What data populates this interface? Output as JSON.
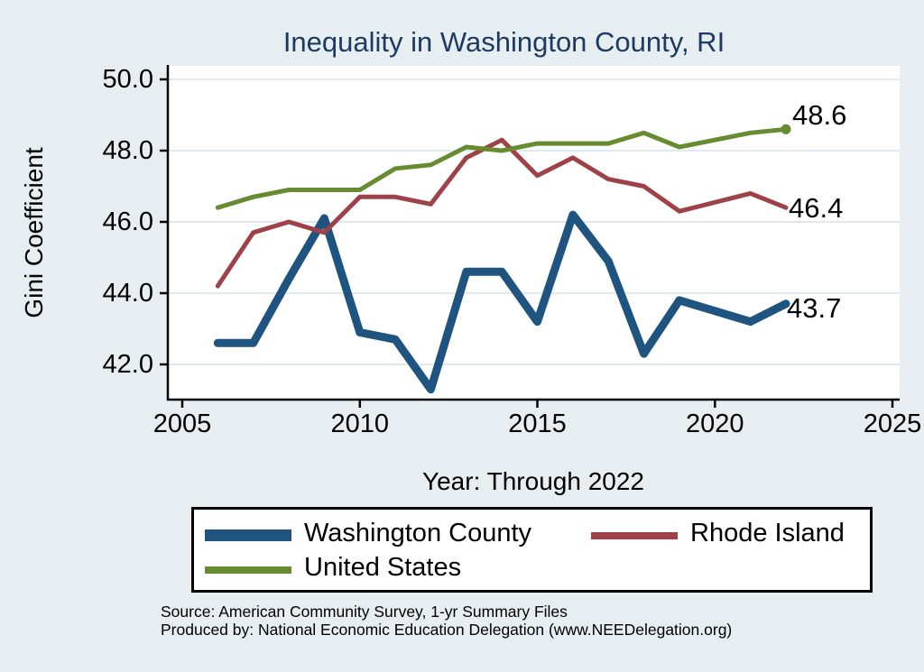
{
  "title": "Inequality in Washington County, RI",
  "chart_data": {
    "type": "line",
    "title": "Inequality in Washington County, RI",
    "xlabel": "Year: Through 2022",
    "ylabel": "Gini Coefficient",
    "xlim": [
      2005,
      2025
    ],
    "ylim": [
      41.0,
      50.4
    ],
    "grid": "horizontal",
    "legend_position": "bottom",
    "xticks": [
      2005,
      2010,
      2015,
      2020,
      2025
    ],
    "xtick_labels": [
      "2005",
      "2010",
      "2015",
      "2020",
      "2025"
    ],
    "yticks": [
      42,
      44,
      46,
      48,
      50
    ],
    "ytick_labels": [
      "42.0",
      "44.0",
      "46.0",
      "48.0",
      "50.0"
    ],
    "x": [
      2006,
      2007,
      2008,
      2009,
      2010,
      2011,
      2012,
      2013,
      2014,
      2015,
      2016,
      2017,
      2018,
      2019,
      2021,
      2022
    ],
    "series": [
      {
        "name": "Washington County",
        "color": "#1e547f",
        "line_width": 9,
        "end_label": "43.7",
        "end_marker": false,
        "values": [
          42.6,
          42.6,
          44.4,
          46.1,
          42.9,
          42.7,
          41.3,
          44.6,
          44.6,
          43.2,
          46.2,
          44.9,
          42.3,
          43.8,
          43.2,
          43.7
        ]
      },
      {
        "name": "Rhode Island",
        "color": "#9e4149",
        "line_width": 5,
        "end_label": "46.4",
        "end_marker": false,
        "values": [
          44.2,
          45.7,
          46.0,
          45.7,
          46.7,
          46.7,
          46.5,
          47.8,
          48.3,
          47.3,
          47.8,
          47.2,
          47.0,
          46.3,
          46.8,
          46.4
        ]
      },
      {
        "name": "United States",
        "color": "#668b30",
        "line_width": 5,
        "end_label": "48.6",
        "end_marker": true,
        "values": [
          46.4,
          46.7,
          46.9,
          46.9,
          46.9,
          47.5,
          47.6,
          48.1,
          48.0,
          48.2,
          48.2,
          48.2,
          48.5,
          48.1,
          48.5,
          48.6
        ]
      }
    ]
  },
  "source_line1": "Source: American Community Survey, 1-yr Summary Files",
  "source_line2": "Produced by: National Economic Education Delegation (www.NEEDelegation.org)"
}
